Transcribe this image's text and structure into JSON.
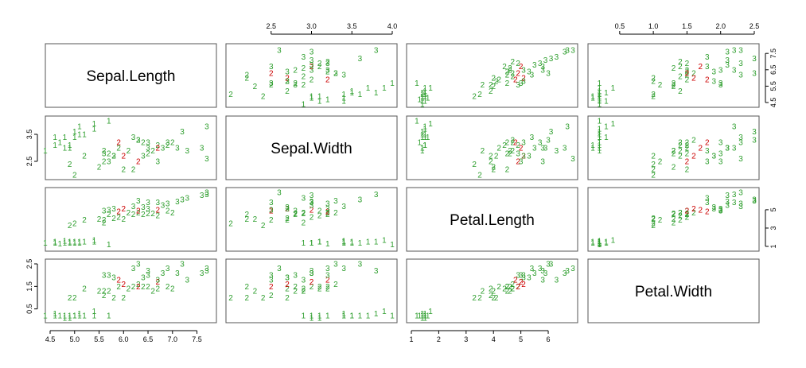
{
  "chart_data": {
    "type": "scatter",
    "variables": [
      "Sepal.Length",
      "Sepal.Width",
      "Petal.Length",
      "Petal.Width"
    ],
    "ranges": {
      "Sepal.Length": [
        4.5,
        7.8
      ],
      "Sepal.Width": [
        2.0,
        4.0
      ],
      "Petal.Length": [
        1.0,
        6.9
      ],
      "Petal.Width": [
        0.1,
        2.5
      ]
    },
    "ticks": {
      "Sepal.Length": {
        "values": [
          4.5,
          5.0,
          5.5,
          6.0,
          6.5,
          7.0,
          7.5
        ],
        "labels": [
          "4.5",
          "5.0",
          "5.5",
          "6.0",
          "6.5",
          "7.0",
          "7.5"
        ]
      },
      "Sepal.Width": {
        "values": [
          2.5,
          3.0,
          3.5,
          4.0
        ],
        "labels": [
          "2.5",
          "3.0",
          "3.5",
          "4.0"
        ]
      },
      "Petal.Length": {
        "values": [
          1,
          2,
          3,
          4,
          5,
          6
        ],
        "labels": [
          "1",
          "2",
          "3",
          "4",
          "5",
          "6"
        ]
      },
      "Petal.Width": {
        "values": [
          0.5,
          1.0,
          1.5,
          2.0,
          2.5
        ],
        "labels": [
          "0.5",
          "1.0",
          "1.5",
          "2.0",
          "2.5"
        ]
      }
    },
    "left_axis_ticks": {
      "Sepal.Length": {
        "values": [
          4.5,
          5.5,
          6.5,
          7.5
        ],
        "labels": [
          "4.5",
          "5.5",
          "6.5",
          "7.5"
        ]
      },
      "Sepal.Width": {
        "values": [
          2.5,
          3.5
        ],
        "labels": [
          "2.5",
          "3.5"
        ]
      },
      "Petal.Length": {
        "values": [
          1,
          3,
          5
        ],
        "labels": [
          "1",
          "3",
          "5"
        ]
      },
      "Petal.Width": {
        "values": [
          0.5,
          1.5,
          2.5
        ],
        "labels": [
          "0.5",
          "1.5",
          "2.5"
        ]
      }
    },
    "colors": {
      "1": "#2e9e2e",
      "2": "#2e9e2e",
      "3": "#2e9e2e",
      "misclassified": "#cc0000"
    },
    "points": [
      {
        "sl": 5.1,
        "sw": 3.5,
        "pl": 1.4,
        "pw": 0.2,
        "label": "1",
        "color": "#2e9e2e"
      },
      {
        "sl": 4.9,
        "sw": 3.0,
        "pl": 1.4,
        "pw": 0.2,
        "label": "1",
        "color": "#2e9e2e"
      },
      {
        "sl": 4.7,
        "sw": 3.2,
        "pl": 1.3,
        "pw": 0.2,
        "label": "1",
        "color": "#2e9e2e"
      },
      {
        "sl": 4.6,
        "sw": 3.1,
        "pl": 1.5,
        "pw": 0.2,
        "label": "1",
        "color": "#2e9e2e"
      },
      {
        "sl": 5.0,
        "sw": 3.6,
        "pl": 1.4,
        "pw": 0.2,
        "label": "1",
        "color": "#2e9e2e"
      },
      {
        "sl": 5.4,
        "sw": 3.9,
        "pl": 1.7,
        "pw": 0.4,
        "label": "1",
        "color": "#2e9e2e"
      },
      {
        "sl": 4.6,
        "sw": 3.4,
        "pl": 1.4,
        "pw": 0.3,
        "label": "1",
        "color": "#2e9e2e"
      },
      {
        "sl": 5.0,
        "sw": 3.4,
        "pl": 1.5,
        "pw": 0.2,
        "label": "1",
        "color": "#2e9e2e"
      },
      {
        "sl": 4.4,
        "sw": 2.9,
        "pl": 1.4,
        "pw": 0.2,
        "label": "1",
        "color": "#2e9e2e"
      },
      {
        "sl": 4.9,
        "sw": 3.1,
        "pl": 1.5,
        "pw": 0.1,
        "label": "1",
        "color": "#2e9e2e"
      },
      {
        "sl": 5.4,
        "sw": 3.7,
        "pl": 1.5,
        "pw": 0.2,
        "label": "1",
        "color": "#2e9e2e"
      },
      {
        "sl": 4.8,
        "sw": 3.4,
        "pl": 1.6,
        "pw": 0.2,
        "label": "1",
        "color": "#2e9e2e"
      },
      {
        "sl": 4.8,
        "sw": 3.0,
        "pl": 1.4,
        "pw": 0.1,
        "label": "1",
        "color": "#2e9e2e"
      },
      {
        "sl": 5.7,
        "sw": 4.0,
        "pl": 1.2,
        "pw": 0.2,
        "label": "1",
        "color": "#2e9e2e"
      },
      {
        "sl": 5.1,
        "sw": 3.8,
        "pl": 1.5,
        "pw": 0.3,
        "label": "1",
        "color": "#2e9e2e"
      },
      {
        "sl": 5.2,
        "sw": 3.5,
        "pl": 1.5,
        "pw": 0.2,
        "label": "1",
        "color": "#2e9e2e"
      },
      {
        "sl": 7.0,
        "sw": 3.2,
        "pl": 4.7,
        "pw": 1.4,
        "label": "2",
        "color": "#2e9e2e"
      },
      {
        "sl": 6.4,
        "sw": 3.2,
        "pl": 4.5,
        "pw": 1.5,
        "label": "2",
        "color": "#2e9e2e"
      },
      {
        "sl": 6.9,
        "sw": 3.1,
        "pl": 4.9,
        "pw": 1.5,
        "label": "2",
        "color": "#2e9e2e"
      },
      {
        "sl": 5.5,
        "sw": 2.3,
        "pl": 4.0,
        "pw": 1.3,
        "label": "2",
        "color": "#2e9e2e"
      },
      {
        "sl": 6.5,
        "sw": 2.8,
        "pl": 4.6,
        "pw": 1.5,
        "label": "2",
        "color": "#2e9e2e"
      },
      {
        "sl": 5.7,
        "sw": 2.8,
        "pl": 4.5,
        "pw": 1.3,
        "label": "2",
        "color": "#2e9e2e"
      },
      {
        "sl": 6.3,
        "sw": 3.3,
        "pl": 4.7,
        "pw": 1.6,
        "label": "2",
        "color": "#2e9e2e"
      },
      {
        "sl": 4.9,
        "sw": 2.4,
        "pl": 3.3,
        "pw": 1.0,
        "label": "2",
        "color": "#2e9e2e"
      },
      {
        "sl": 6.6,
        "sw": 2.9,
        "pl": 4.6,
        "pw": 1.3,
        "label": "2",
        "color": "#2e9e2e"
      },
      {
        "sl": 5.2,
        "sw": 2.7,
        "pl": 3.9,
        "pw": 1.4,
        "label": "2",
        "color": "#2e9e2e"
      },
      {
        "sl": 5.0,
        "sw": 2.0,
        "pl": 3.5,
        "pw": 1.0,
        "label": "2",
        "color": "#2e9e2e"
      },
      {
        "sl": 5.9,
        "sw": 3.0,
        "pl": 4.2,
        "pw": 1.5,
        "label": "2",
        "color": "#2e9e2e"
      },
      {
        "sl": 6.0,
        "sw": 2.2,
        "pl": 4.0,
        "pw": 1.0,
        "label": "2",
        "color": "#2e9e2e"
      },
      {
        "sl": 6.1,
        "sw": 2.9,
        "pl": 4.7,
        "pw": 1.4,
        "label": "2",
        "color": "#2e9e2e"
      },
      {
        "sl": 5.6,
        "sw": 2.9,
        "pl": 3.6,
        "pw": 1.3,
        "label": "2",
        "color": "#2e9e2e"
      },
      {
        "sl": 6.7,
        "sw": 3.1,
        "pl": 4.4,
        "pw": 1.4,
        "label": "2",
        "color": "#2e9e2e"
      },
      {
        "sl": 5.8,
        "sw": 2.7,
        "pl": 4.1,
        "pw": 1.0,
        "label": "2",
        "color": "#2e9e2e"
      },
      {
        "sl": 6.2,
        "sw": 2.2,
        "pl": 4.5,
        "pw": 1.5,
        "label": "2",
        "color": "#2e9e2e"
      },
      {
        "sl": 5.6,
        "sw": 2.5,
        "pl": 3.9,
        "pw": 1.1,
        "label": "2",
        "color": "#2e9e2e"
      },
      {
        "sl": 5.9,
        "sw": 3.2,
        "pl": 4.8,
        "pw": 1.8,
        "label": "2",
        "color": "#cc0000"
      },
      {
        "sl": 6.3,
        "sw": 2.5,
        "pl": 4.9,
        "pw": 1.5,
        "label": "2",
        "color": "#cc0000"
      },
      {
        "sl": 6.7,
        "sw": 3.0,
        "pl": 5.0,
        "pw": 1.7,
        "label": "2",
        "color": "#cc0000"
      },
      {
        "sl": 6.0,
        "sw": 2.7,
        "pl": 5.1,
        "pw": 1.6,
        "label": "2",
        "color": "#cc0000"
      },
      {
        "sl": 6.3,
        "sw": 3.3,
        "pl": 6.0,
        "pw": 2.5,
        "label": "3",
        "color": "#2e9e2e"
      },
      {
        "sl": 5.8,
        "sw": 2.7,
        "pl": 5.1,
        "pw": 1.9,
        "label": "3",
        "color": "#2e9e2e"
      },
      {
        "sl": 7.1,
        "sw": 3.0,
        "pl": 5.9,
        "pw": 2.1,
        "label": "3",
        "color": "#2e9e2e"
      },
      {
        "sl": 6.5,
        "sw": 3.0,
        "pl": 5.8,
        "pw": 2.2,
        "label": "3",
        "color": "#2e9e2e"
      },
      {
        "sl": 7.6,
        "sw": 3.0,
        "pl": 6.6,
        "pw": 2.1,
        "label": "3",
        "color": "#2e9e2e"
      },
      {
        "sl": 7.3,
        "sw": 2.9,
        "pl": 6.3,
        "pw": 1.8,
        "label": "3",
        "color": "#2e9e2e"
      },
      {
        "sl": 6.7,
        "sw": 2.5,
        "pl": 5.8,
        "pw": 1.8,
        "label": "3",
        "color": "#2e9e2e"
      },
      {
        "sl": 7.2,
        "sw": 3.6,
        "pl": 6.1,
        "pw": 2.5,
        "label": "3",
        "color": "#2e9e2e"
      },
      {
        "sl": 6.5,
        "sw": 3.2,
        "pl": 5.1,
        "pw": 2.0,
        "label": "3",
        "color": "#2e9e2e"
      },
      {
        "sl": 6.4,
        "sw": 2.7,
        "pl": 5.3,
        "pw": 1.9,
        "label": "3",
        "color": "#2e9e2e"
      },
      {
        "sl": 6.8,
        "sw": 3.0,
        "pl": 5.5,
        "pw": 2.1,
        "label": "3",
        "color": "#2e9e2e"
      },
      {
        "sl": 5.7,
        "sw": 2.5,
        "pl": 5.0,
        "pw": 2.0,
        "label": "3",
        "color": "#2e9e2e"
      },
      {
        "sl": 7.7,
        "sw": 3.8,
        "pl": 6.7,
        "pw": 2.2,
        "label": "3",
        "color": "#2e9e2e"
      },
      {
        "sl": 7.7,
        "sw": 2.6,
        "pl": 6.9,
        "pw": 2.3,
        "label": "3",
        "color": "#2e9e2e"
      },
      {
        "sl": 6.9,
        "sw": 3.2,
        "pl": 5.7,
        "pw": 2.3,
        "label": "3",
        "color": "#2e9e2e"
      },
      {
        "sl": 5.6,
        "sw": 2.8,
        "pl": 4.9,
        "pw": 2.0,
        "label": "3",
        "color": "#2e9e2e"
      },
      {
        "sl": 6.2,
        "sw": 3.4,
        "pl": 5.4,
        "pw": 2.3,
        "label": "3",
        "color": "#2e9e2e"
      }
    ]
  }
}
